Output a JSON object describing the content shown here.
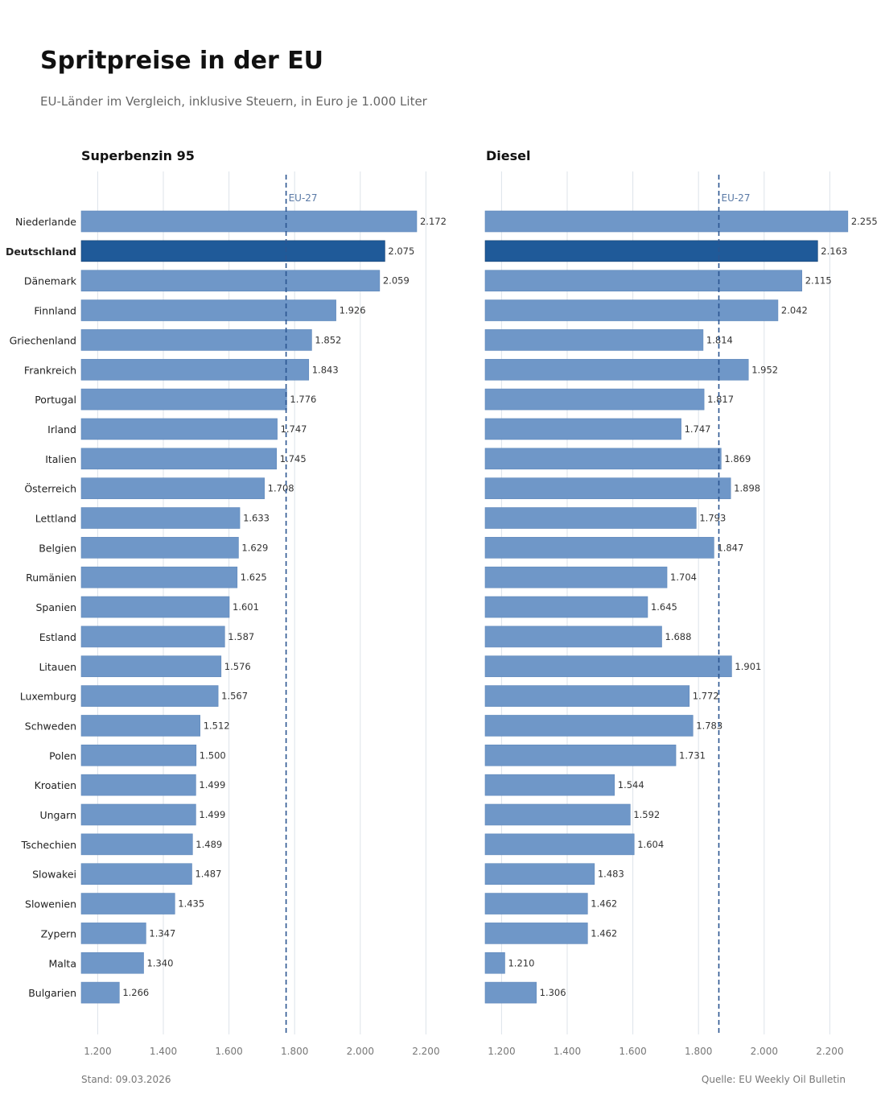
{
  "title": "Spritpreise in der EU",
  "subtitle": "EU-Länder im Vergleich, inklusive Steuern, in Euro je 1.000 Liter",
  "footer": {
    "date": "Stand: 09.03.2026",
    "source": "Quelle: EU Weekly Oil Bulletin"
  },
  "colors": {
    "bar": "#6f97c8",
    "highlight": "#1f5a99",
    "reference": "#2b5590",
    "grid": "#dde3ea"
  },
  "chart_data": [
    {
      "type": "bar",
      "orientation": "horizontal",
      "title": "Superbenzin 95",
      "categories": [
        "Niederlande",
        "Deutschland",
        "Dänemark",
        "Finnland",
        "Griechenland",
        "Frankreich",
        "Portugal",
        "Irland",
        "Italien",
        "Österreich",
        "Lettland",
        "Belgien",
        "Rumänien",
        "Spanien",
        "Estland",
        "Litauen",
        "Luxemburg",
        "Schweden",
        "Polen",
        "Kroatien",
        "Ungarn",
        "Tschechien",
        "Slowakei",
        "Slowenien",
        "Zypern",
        "Malta",
        "Bulgarien"
      ],
      "values": [
        2172,
        2075,
        2059,
        1926,
        1852,
        1843,
        1776,
        1747,
        1745,
        1708,
        1633,
        1629,
        1625,
        1601,
        1587,
        1576,
        1567,
        1512,
        1500,
        1499,
        1499,
        1489,
        1487,
        1435,
        1347,
        1340,
        1266
      ],
      "value_labels": [
        "2.172",
        "2.075",
        "2.059",
        "1.926",
        "1.852",
        "1.843",
        "1.776",
        "1.747",
        "1.745",
        "1.708",
        "1.633",
        "1.629",
        "1.625",
        "1.601",
        "1.587",
        "1.576",
        "1.567",
        "1.512",
        "1.500",
        "1.499",
        "1.499",
        "1.489",
        "1.487",
        "1.435",
        "1.347",
        "1.340",
        "1.266"
      ],
      "highlight": "Deutschland",
      "reference_line": {
        "label": "EU-27",
        "value": 1774
      },
      "xlim": [
        1150,
        2300
      ],
      "xticks": [
        1200,
        1400,
        1600,
        1800,
        2000,
        2200
      ],
      "xtick_labels": [
        "1.200",
        "1.400",
        "1.600",
        "1.800",
        "2.000",
        "2.200"
      ],
      "grid": true
    },
    {
      "type": "bar",
      "orientation": "horizontal",
      "title": "Diesel",
      "categories": [
        "Niederlande",
        "Deutschland",
        "Dänemark",
        "Finnland",
        "Griechenland",
        "Frankreich",
        "Portugal",
        "Irland",
        "Italien",
        "Österreich",
        "Lettland",
        "Belgien",
        "Rumänien",
        "Spanien",
        "Estland",
        "Litauen",
        "Luxemburg",
        "Schweden",
        "Polen",
        "Kroatien",
        "Ungarn",
        "Tschechien",
        "Slowakei",
        "Slowenien",
        "Zypern",
        "Malta",
        "Bulgarien"
      ],
      "values": [
        2255,
        2163,
        2115,
        2042,
        1814,
        1952,
        1817,
        1747,
        1869,
        1898,
        1793,
        1847,
        1704,
        1645,
        1688,
        1901,
        1772,
        1783,
        1731,
        1544,
        1592,
        1604,
        1483,
        1462,
        1462,
        1210,
        1306
      ],
      "value_labels": [
        "2.255",
        "2.163",
        "2.115",
        "2.042",
        "1.814",
        "1.952",
        "1.817",
        "1.747",
        "1.869",
        "1.898",
        "1.793",
        "1.847",
        "1.704",
        "1.645",
        "1.688",
        "1.901",
        "1.772",
        "1.783",
        "1.731",
        "1.544",
        "1.592",
        "1.604",
        "1.483",
        "1.462",
        "1.462",
        "1.210",
        "1.306"
      ],
      "highlight": "Deutschland",
      "reference_line": {
        "label": "EU-27",
        "value": 1862
      },
      "xlim": [
        1150,
        2300
      ],
      "xticks": [
        1200,
        1400,
        1600,
        1800,
        2000,
        2200
      ],
      "xtick_labels": [
        "1.200",
        "1.400",
        "1.600",
        "1.800",
        "2.000",
        "2.200"
      ],
      "grid": true
    }
  ]
}
